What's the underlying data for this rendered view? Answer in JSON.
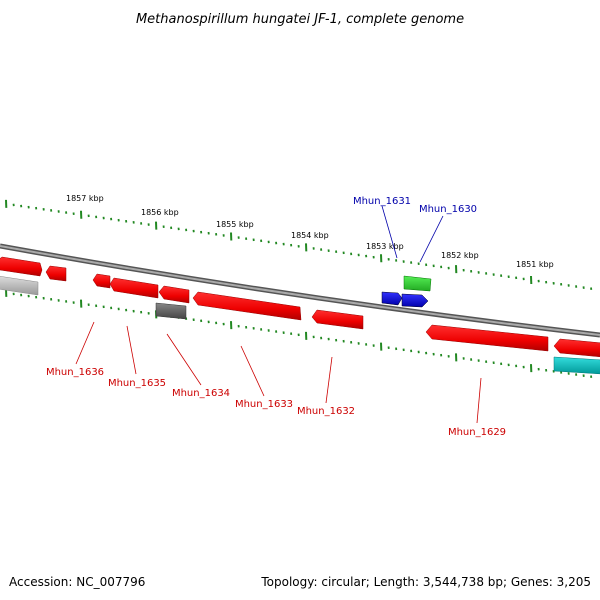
{
  "title": "Methanospirillum hungatei JF-1, complete genome",
  "footer": {
    "accession": "Accession: NC_007796",
    "summary": "Topology: circular; Length: 3,544,738 bp; Genes: 3,205"
  },
  "ticks": {
    "outer": [
      "1857 kbp",
      "1856 kbp",
      "1855 kbp",
      "1854 kbp",
      "1853 kbp",
      "1852 kbp",
      "1851 kbp"
    ]
  },
  "colors": {
    "forward_gene": "#ff0000",
    "reverse_gene": "#ff0000",
    "blue_gene": "#0000ee",
    "green_gene": "#33dd33",
    "cyan_gene": "#00cccc",
    "grey_gene": "#777777",
    "backbone": "#888888",
    "tick": "#228822",
    "label_red": "#cc0000",
    "label_blue": "#0000aa"
  },
  "genes": {
    "upper": [
      {
        "name": "Mhun_1631",
        "color": "blue"
      },
      {
        "name": "Mhun_1630",
        "color": "blue"
      }
    ],
    "lower": [
      {
        "name": "Mhun_1636"
      },
      {
        "name": "Mhun_1635"
      },
      {
        "name": "Mhun_1634"
      },
      {
        "name": "Mhun_1633"
      },
      {
        "name": "Mhun_1632"
      },
      {
        "name": "Mhun_1629"
      }
    ]
  }
}
